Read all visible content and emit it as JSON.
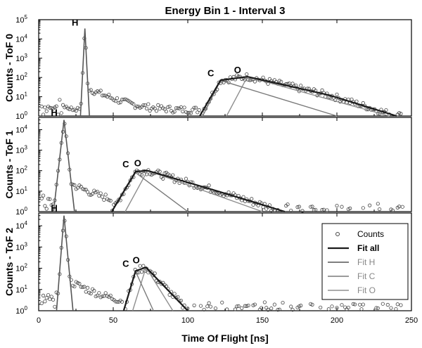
{
  "chart_data": {
    "type": "scatter",
    "title": "Energy Bin 1 - Interval 3",
    "xlabel": "Time Of Flight [ns]",
    "xlim": [
      0,
      250
    ],
    "x_ticks": [
      "0",
      "50",
      "100",
      "150",
      "200",
      "250"
    ],
    "y_scale": "log",
    "ylim": [
      1,
      100000
    ],
    "legend": {
      "position": "bottom-right of lower panel",
      "entries": [
        "Counts",
        "Fit all",
        "Fit H",
        "Fit C",
        "Fit O"
      ]
    },
    "panels": [
      {
        "ylabel": "Counts - ToF 0",
        "y_ticks": [
          {
            "t": "10",
            "e": "0",
            "v": 1
          },
          {
            "t": "10",
            "e": "1",
            "v": 10
          },
          {
            "t": "10",
            "e": "2",
            "v": 100
          },
          {
            "t": "10",
            "e": "3",
            "v": 1000
          },
          {
            "t": "10",
            "e": "4",
            "v": 10000
          },
          {
            "t": "10",
            "e": "5",
            "v": 100000
          }
        ],
        "peaks": [
          {
            "label": "H",
            "x": 31,
            "y": 30000
          },
          {
            "label": "C",
            "x": 122,
            "y": 70
          },
          {
            "label": "O",
            "x": 140,
            "y": 100
          }
        ],
        "components": {
          "H": [
            [
              28,
              1
            ],
            [
              31,
              35000
            ],
            [
              34,
              1
            ]
          ],
          "C": [
            [
              110,
              1
            ],
            [
              122,
              70
            ],
            [
              200,
              1
            ]
          ],
          "O": [
            [
              126,
              1
            ],
            [
              140,
              110
            ],
            [
              235,
              1
            ]
          ],
          "all": [
            [
              108,
              1
            ],
            [
              122,
              72
            ],
            [
              140,
              110
            ],
            [
              195,
              12
            ],
            [
              240,
              1
            ]
          ]
        }
      },
      {
        "ylabel": "Counts - ToF 1",
        "y_ticks": [
          {
            "t": "10",
            "e": "0",
            "v": 1
          },
          {
            "t": "10",
            "e": "1",
            "v": 10
          },
          {
            "t": "10",
            "e": "2",
            "v": 100
          },
          {
            "t": "10",
            "e": "3",
            "v": 1000
          },
          {
            "t": "10",
            "e": "4",
            "v": 10000
          }
        ],
        "peaks": [
          {
            "label": "H",
            "x": 17,
            "y": 30000
          },
          {
            "label": "C",
            "x": 65,
            "y": 90
          },
          {
            "label": "O",
            "x": 73,
            "y": 100
          }
        ],
        "components": {
          "H": [
            [
              10,
              1
            ],
            [
              17,
              30000
            ],
            [
              24,
              1
            ]
          ],
          "C": [
            [
              49,
              1
            ],
            [
              65,
              80
            ],
            [
              100,
              1
            ]
          ],
          "O": [
            [
              58,
              1
            ],
            [
              73,
              100
            ],
            [
              150,
              1
            ]
          ],
          "all": [
            [
              49,
              1
            ],
            [
              65,
              90
            ],
            [
              73,
              100
            ],
            [
              120,
              10
            ],
            [
              165,
              1
            ]
          ]
        }
      },
      {
        "ylabel": "Counts - ToF 2",
        "y_ticks": [
          {
            "t": "10",
            "e": "0",
            "v": 1
          },
          {
            "t": "10",
            "e": "1",
            "v": 10
          },
          {
            "t": "10",
            "e": "2",
            "v": 100
          },
          {
            "t": "10",
            "e": "3",
            "v": 1000
          },
          {
            "t": "10",
            "e": "4",
            "v": 10000
          }
        ],
        "peaks": [
          {
            "label": "H",
            "x": 17,
            "y": 30000
          },
          {
            "label": "C",
            "x": 65,
            "y": 75
          },
          {
            "label": "O",
            "x": 72,
            "y": 110
          }
        ],
        "components": {
          "H": [
            [
              12,
              1
            ],
            [
              17,
              30000
            ],
            [
              23,
              1
            ]
          ],
          "C": [
            [
              57,
              1
            ],
            [
              65,
              70
            ],
            [
              77,
              1
            ]
          ],
          "O": [
            [
              63,
              1
            ],
            [
              72,
              110
            ],
            [
              90,
              1
            ]
          ],
          "all": [
            [
              57,
              1
            ],
            [
              65,
              75
            ],
            [
              72,
              110
            ],
            [
              100,
              1
            ]
          ]
        }
      }
    ]
  }
}
